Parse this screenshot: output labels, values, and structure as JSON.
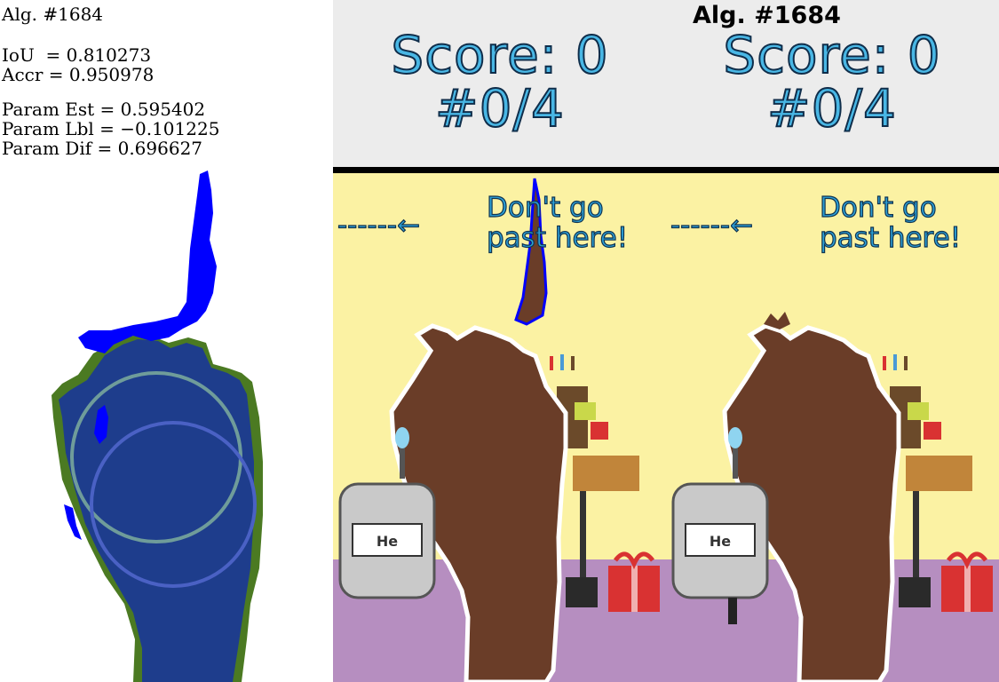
{
  "stats": {
    "alg": "Alg. #1684",
    "iou": "IoU  = 0.810273",
    "accr": "Accr = 0.950978",
    "param_est": "Param Est = 0.595402",
    "param_lbl": "Param Lbl = −0.101225",
    "param_dif": "Param Dif = 0.696627"
  },
  "header": {
    "alg_title": "Alg. #1684",
    "left": {
      "score": "Score: 0",
      "count": "#0/4"
    },
    "right": {
      "score": "Score: 0",
      "count": "#0/4"
    }
  },
  "game": {
    "warning_line1": "Don't go",
    "warning_line2": "past here!",
    "jug_label": "He"
  },
  "colors": {
    "background": "#fbf2a3",
    "floor": "#b68ec0",
    "score_text": "#49b7e5",
    "mask_blue": "#0000ff",
    "mask_navy": "#1e3d8c",
    "mask_green": "#4b7a22",
    "gift_red": "#d93232"
  }
}
